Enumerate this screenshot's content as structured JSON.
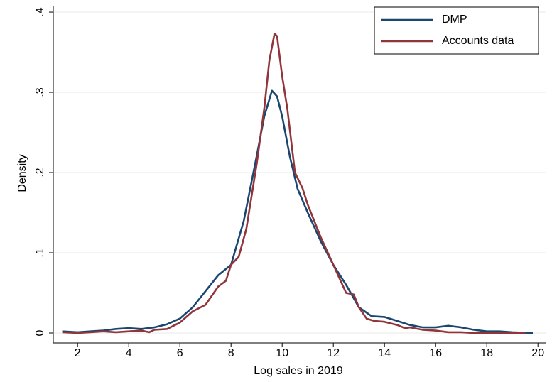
{
  "chart_data": {
    "type": "line",
    "xlabel": "Log sales in 2019",
    "ylabel": "Density",
    "xlim": [
      1.05,
      20.3
    ],
    "ylim": [
      -0.0124,
      0.408
    ],
    "xticks": [
      2,
      4,
      6,
      8,
      10,
      12,
      14,
      16,
      18,
      20
    ],
    "yticks": [
      0,
      {
        "value": 0.1,
        "label": ".1"
      },
      {
        "value": 0.2,
        "label": ".2"
      },
      {
        "value": 0.3,
        "label": ".3"
      },
      {
        "value": 0.4,
        "label": ".4"
      }
    ],
    "grid": true,
    "legend": "top-right",
    "series": [
      {
        "name": "DMP",
        "color": "#1a476f",
        "x": [
          1.4,
          2,
          2.5,
          3,
          3.5,
          4,
          4.5,
          5,
          5.5,
          6,
          6.5,
          7,
          7.5,
          8,
          8.5,
          9,
          9.3,
          9.6,
          9.8,
          10,
          10.3,
          10.6,
          11,
          11.5,
          12,
          12.5,
          13,
          13.5,
          14,
          14.5,
          15,
          15.5,
          16,
          16.5,
          17,
          17.5,
          18,
          18.5,
          19,
          19.8
        ],
        "values": [
          0.002,
          0.001,
          0.002,
          0.003,
          0.005,
          0.006,
          0.005,
          0.007,
          0.011,
          0.018,
          0.032,
          0.052,
          0.072,
          0.085,
          0.14,
          0.22,
          0.27,
          0.302,
          0.295,
          0.27,
          0.22,
          0.18,
          0.15,
          0.115,
          0.085,
          0.06,
          0.032,
          0.021,
          0.02,
          0.015,
          0.01,
          0.007,
          0.007,
          0.009,
          0.007,
          0.004,
          0.002,
          0.002,
          0.001,
          0
        ]
      },
      {
        "name": "Accounts data",
        "color": "#90353b",
        "x": [
          1.4,
          2,
          2.5,
          3,
          3.5,
          4,
          4.5,
          4.8,
          5,
          5.5,
          6,
          6.5,
          7,
          7.5,
          7.8,
          8,
          8.3,
          8.6,
          9,
          9.3,
          9.5,
          9.7,
          9.8,
          10,
          10.2,
          10.5,
          10.8,
          11,
          11.5,
          12,
          12.5,
          12.8,
          13,
          13.3,
          13.6,
          14,
          14.5,
          14.8,
          15,
          15.5,
          16,
          16.5,
          17,
          17.5,
          18,
          18.5,
          19,
          19.5
        ],
        "values": [
          0.001,
          0,
          0.001,
          0.002,
          0.001,
          0.002,
          0.003,
          0.001,
          0.004,
          0.005,
          0.013,
          0.027,
          0.035,
          0.058,
          0.065,
          0.085,
          0.095,
          0.13,
          0.21,
          0.28,
          0.34,
          0.373,
          0.37,
          0.32,
          0.28,
          0.2,
          0.18,
          0.16,
          0.12,
          0.085,
          0.05,
          0.048,
          0.032,
          0.018,
          0.015,
          0.014,
          0.01,
          0.006,
          0.007,
          0.004,
          0.003,
          0.001,
          0.001,
          0,
          0,
          0,
          0,
          0
        ]
      }
    ]
  }
}
